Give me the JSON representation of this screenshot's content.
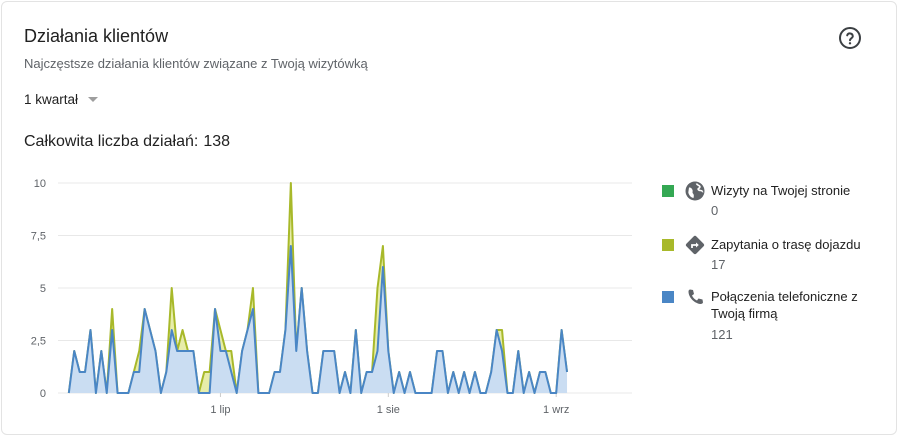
{
  "card": {
    "title": "Działania klientów",
    "subtitle": "Najczęstsze działania klientów związane z Twoją wizytówką",
    "period_label": "1 kwartał",
    "total_label": "Całkowita liczba działań:",
    "total_value": "138",
    "help_icon": "help-circle-icon"
  },
  "colors": {
    "website": "#34a853",
    "directions": "#a8b92a",
    "calls": "#4a86c5",
    "calls_fill": "#c8dcf5",
    "grid": "#e8e8e8"
  },
  "legend": [
    {
      "name": "Wizyty na Twojej stronie",
      "value": "0",
      "icon": "globe-icon",
      "color": "#34a853"
    },
    {
      "name": "Zapytania o trasę dojazdu",
      "value": "17",
      "icon": "directions-icon",
      "color": "#a8b92a"
    },
    {
      "name": "Połączenia telefoniczne z Twoją firmą",
      "value": "121",
      "icon": "phone-icon",
      "color": "#4a86c5"
    }
  ],
  "chart_data": {
    "type": "area",
    "ylim": [
      0,
      10
    ],
    "y_ticks": [
      0,
      2.5,
      5,
      7.5,
      10
    ],
    "y_tick_labels": [
      "0",
      "2,5",
      "5",
      "7,5",
      "10"
    ],
    "x_range": [
      "2019-06-01",
      "2019-09-15"
    ],
    "x_ticks": [
      {
        "date": "2019-07-01",
        "label": "1 lip"
      },
      {
        "date": "2019-08-01",
        "label": "1 sie"
      },
      {
        "date": "2019-09-01",
        "label": "1 wrz"
      }
    ],
    "x_start_date": "2019-06-01",
    "series": [
      {
        "name": "Wizyty na Twojej stronie",
        "values": [
          0,
          0,
          0,
          0,
          0,
          0,
          0,
          0,
          0,
          0,
          0,
          0,
          0,
          0,
          0,
          0,
          0,
          0,
          0,
          0,
          0,
          0,
          0,
          0,
          0,
          0,
          0,
          0,
          0,
          0,
          0,
          0,
          0,
          0,
          0,
          0,
          0,
          0,
          0,
          0,
          0,
          0,
          0,
          0,
          0,
          0,
          0,
          0,
          0,
          0,
          0,
          0,
          0,
          0,
          0,
          0,
          0,
          0,
          0,
          0,
          0,
          0,
          0,
          0,
          0,
          0,
          0,
          0,
          0,
          0,
          0,
          0,
          0,
          0,
          0,
          0,
          0,
          0,
          0,
          0,
          0,
          0,
          0,
          0,
          0,
          0,
          0,
          0,
          0,
          0,
          0,
          0,
          0,
          0,
          0,
          0,
          0,
          0,
          0,
          0,
          0,
          0,
          0,
          0,
          0,
          0,
          0,
          0,
          0,
          0,
          0
        ]
      },
      {
        "name": "Zapytania o trasę dojazdu",
        "values": [
          0,
          2,
          1,
          1,
          3,
          0,
          2,
          0,
          4,
          0,
          0,
          0,
          1,
          2,
          4,
          3,
          2,
          0,
          1,
          5,
          2,
          3,
          2,
          2,
          0,
          1,
          1,
          4,
          3,
          2,
          2,
          0,
          2,
          3,
          5,
          0,
          0,
          0,
          1,
          1,
          3,
          10,
          2,
          5,
          2,
          0,
          0,
          2,
          2,
          2,
          0,
          1,
          0,
          3,
          0,
          1,
          1,
          5,
          7,
          2,
          0,
          1,
          0,
          1,
          0,
          0,
          0,
          0,
          2,
          2,
          0,
          1,
          0,
          1,
          0,
          1,
          0,
          0,
          1,
          3,
          3,
          0,
          0,
          2,
          0,
          1,
          0,
          1,
          1,
          0,
          0,
          3,
          1
        ]
      },
      {
        "name": "Połączenia telefoniczne z Twoją firmą",
        "values": [
          0,
          2,
          1,
          1,
          3,
          0,
          2,
          0,
          3,
          0,
          0,
          0,
          1,
          1,
          4,
          3,
          2,
          0,
          1,
          3,
          2,
          2,
          2,
          2,
          0,
          0,
          0,
          4,
          2,
          2,
          1,
          0,
          2,
          3,
          4,
          0,
          0,
          0,
          1,
          1,
          3,
          7,
          2,
          5,
          2,
          0,
          0,
          2,
          2,
          2,
          0,
          1,
          0,
          3,
          0,
          1,
          1,
          2,
          6,
          2,
          0,
          1,
          0,
          1,
          0,
          0,
          0,
          0,
          2,
          2,
          0,
          1,
          0,
          1,
          0,
          1,
          0,
          0,
          1,
          3,
          2,
          0,
          0,
          2,
          0,
          1,
          0,
          1,
          1,
          0,
          0,
          3,
          1
        ]
      }
    ]
  }
}
